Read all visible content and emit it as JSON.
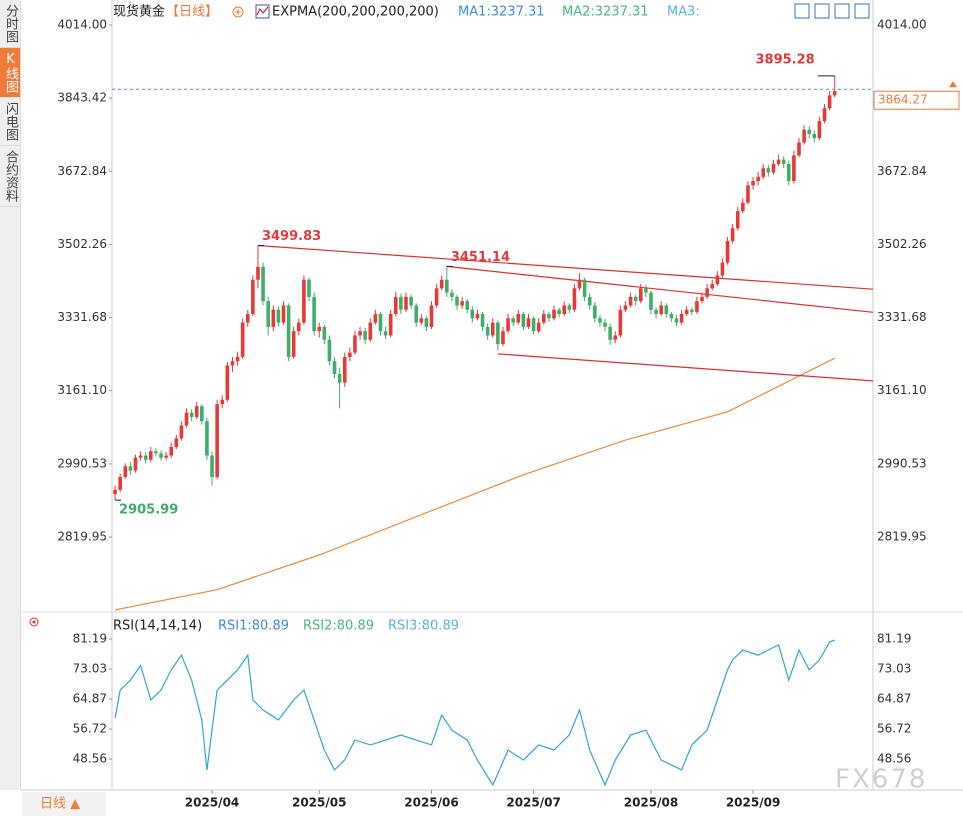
{
  "sidebar_tabs": [
    "分时图",
    "K线图",
    "闪电图",
    "合约资料"
  ],
  "chart_data": [
    {
      "type": "candlestick",
      "title": "现货黄金",
      "period": "【日线】",
      "indicator": "EXPMA(200,200,200,200)",
      "ma_labels": [
        "MA1:3237.31",
        "MA2:3237.31",
        "MA3:"
      ],
      "up_color": "#e8393a",
      "down_color": "#3fae6a",
      "xlim": [
        -0.6,
        148.5
      ],
      "ylim": [
        2645.1,
        4039.7
      ],
      "yticks": [
        {
          "value": 4014,
          "label": "4014.00"
        },
        3843.42,
        3672.84,
        3502.26,
        3331.68,
        {
          "value": 3161.1,
          "label": "3161.10"
        },
        2990.53,
        2819.95
      ],
      "xticks": [
        {
          "value": 19,
          "label": "2025/04"
        },
        {
          "value": 40,
          "label": "2025/05"
        },
        {
          "value": 62,
          "label": "2025/06"
        },
        {
          "value": 82,
          "label": "2025/07"
        },
        {
          "value": 105,
          "label": "2025/08"
        },
        {
          "value": 125,
          "label": "2025/09"
        }
      ],
      "ohlc": [
        [
          2920,
          2940,
          2905.99,
          2930
        ],
        [
          2930,
          2968,
          2925,
          2960
        ],
        [
          2960,
          2992,
          2955,
          2985
        ],
        [
          2985,
          2995,
          2965,
          2975
        ],
        [
          2975,
          3012,
          2970,
          3005
        ],
        [
          3005,
          3020,
          2998,
          3010
        ],
        [
          3010,
          3018,
          2992,
          3000
        ],
        [
          3000,
          3030,
          2995,
          3020
        ],
        [
          3020,
          3028,
          3008,
          3015
        ],
        [
          3015,
          3022,
          2998,
          3005
        ],
        [
          3005,
          3018,
          3000,
          3010
        ],
        [
          3010,
          3040,
          3005,
          3030
        ],
        [
          3030,
          3058,
          3025,
          3050
        ],
        [
          3050,
          3090,
          3045,
          3080
        ],
        [
          3080,
          3120,
          3075,
          3110
        ],
        [
          3110,
          3118,
          3090,
          3100
        ],
        [
          3100,
          3135,
          3095,
          3125
        ],
        [
          3125,
          3130,
          3082,
          3090
        ],
        [
          3090,
          3098,
          3000,
          3010
        ],
        [
          3010,
          3020,
          2940,
          2960
        ],
        [
          2960,
          3140,
          2955,
          3130
        ],
        [
          3130,
          3150,
          3120,
          3140
        ],
        [
          3140,
          3228,
          3135,
          3220
        ],
        [
          3220,
          3240,
          3205,
          3230
        ],
        [
          3230,
          3252,
          3220,
          3240
        ],
        [
          3240,
          3330,
          3235,
          3320
        ],
        [
          3320,
          3350,
          3310,
          3340
        ],
        [
          3340,
          3430,
          3335,
          3420
        ],
        [
          3420,
          3499.83,
          3400,
          3450
        ],
        [
          3450,
          3460,
          3360,
          3370
        ],
        [
          3370,
          3380,
          3290,
          3310
        ],
        [
          3310,
          3360,
          3300,
          3350
        ],
        [
          3350,
          3358,
          3310,
          3320
        ],
        [
          3320,
          3370,
          3315,
          3360
        ],
        [
          3360,
          3365,
          3230,
          3240
        ],
        [
          3240,
          3310,
          3235,
          3300
        ],
        [
          3300,
          3330,
          3290,
          3320
        ],
        [
          3320,
          3430,
          3315,
          3420
        ],
        [
          3420,
          3425,
          3370,
          3380
        ],
        [
          3380,
          3390,
          3290,
          3300
        ],
        [
          3300,
          3320,
          3285,
          3310
        ],
        [
          3310,
          3315,
          3270,
          3280
        ],
        [
          3280,
          3290,
          3220,
          3230
        ],
        [
          3230,
          3240,
          3190,
          3200
        ],
        [
          3200,
          3215,
          3120,
          3180
        ],
        [
          3180,
          3250,
          3170,
          3240
        ],
        [
          3240,
          3262,
          3230,
          3250
        ],
        [
          3250,
          3300,
          3245,
          3290
        ],
        [
          3290,
          3310,
          3280,
          3300
        ],
        [
          3300,
          3308,
          3270,
          3280
        ],
        [
          3280,
          3330,
          3275,
          3320
        ],
        [
          3320,
          3350,
          3315,
          3340
        ],
        [
          3340,
          3345,
          3290,
          3300
        ],
        [
          3300,
          3310,
          3282,
          3290
        ],
        [
          3290,
          3350,
          3285,
          3340
        ],
        [
          3340,
          3392,
          3335,
          3380
        ],
        [
          3380,
          3388,
          3340,
          3350
        ],
        [
          3350,
          3390,
          3345,
          3380
        ],
        [
          3380,
          3385,
          3352,
          3360
        ],
        [
          3360,
          3365,
          3310,
          3320
        ],
        [
          3320,
          3340,
          3315,
          3330
        ],
        [
          3330,
          3335,
          3300,
          3310
        ],
        [
          3310,
          3370,
          3305,
          3360
        ],
        [
          3360,
          3410,
          3355,
          3400
        ],
        [
          3400,
          3430,
          3395,
          3420
        ],
        [
          3420,
          3451.14,
          3380,
          3390
        ],
        [
          3390,
          3398,
          3370,
          3380
        ],
        [
          3380,
          3385,
          3350,
          3360
        ],
        [
          3360,
          3380,
          3352,
          3370
        ],
        [
          3370,
          3375,
          3342,
          3350
        ],
        [
          3350,
          3358,
          3320,
          3330
        ],
        [
          3330,
          3350,
          3325,
          3340
        ],
        [
          3340,
          3345,
          3300,
          3310
        ],
        [
          3310,
          3318,
          3280,
          3290
        ],
        [
          3290,
          3330,
          3285,
          3320
        ],
        [
          3320,
          3325,
          3255,
          3270
        ],
        [
          3270,
          3310,
          3265,
          3300
        ],
        [
          3300,
          3340,
          3295,
          3330
        ],
        [
          3330,
          3335,
          3312,
          3320
        ],
        [
          3320,
          3350,
          3315,
          3340
        ],
        [
          3340,
          3345,
          3302,
          3310
        ],
        [
          3310,
          3340,
          3305,
          3330
        ],
        [
          3330,
          3335,
          3292,
          3300
        ],
        [
          3300,
          3330,
          3295,
          3320
        ],
        [
          3320,
          3350,
          3315,
          3340
        ],
        [
          3340,
          3345,
          3322,
          3330
        ],
        [
          3330,
          3360,
          3325,
          3350
        ],
        [
          3350,
          3355,
          3332,
          3340
        ],
        [
          3340,
          3370,
          3335,
          3360
        ],
        [
          3360,
          3365,
          3342,
          3350
        ],
        [
          3350,
          3410,
          3345,
          3400
        ],
        [
          3400,
          3435,
          3395,
          3420
        ],
        [
          3420,
          3425,
          3370,
          3380
        ],
        [
          3380,
          3388,
          3350,
          3360
        ],
        [
          3360,
          3368,
          3320,
          3330
        ],
        [
          3330,
          3338,
          3310,
          3320
        ],
        [
          3320,
          3328,
          3300,
          3310
        ],
        [
          3310,
          3318,
          3268,
          3280
        ],
        [
          3280,
          3300,
          3272,
          3290
        ],
        [
          3290,
          3360,
          3285,
          3350
        ],
        [
          3350,
          3370,
          3345,
          3360
        ],
        [
          3360,
          3390,
          3355,
          3380
        ],
        [
          3380,
          3385,
          3360,
          3370
        ],
        [
          3370,
          3410,
          3365,
          3400
        ],
        [
          3400,
          3408,
          3380,
          3390
        ],
        [
          3390,
          3395,
          3340,
          3350
        ],
        [
          3350,
          3355,
          3330,
          3340
        ],
        [
          3340,
          3370,
          3335,
          3360
        ],
        [
          3360,
          3365,
          3332,
          3340
        ],
        [
          3340,
          3345,
          3322,
          3330
        ],
        [
          3330,
          3338,
          3312,
          3320
        ],
        [
          3320,
          3350,
          3315,
          3340
        ],
        [
          3340,
          3358,
          3335,
          3350
        ],
        [
          3350,
          3355,
          3338,
          3345
        ],
        [
          3345,
          3380,
          3340,
          3370
        ],
        [
          3370,
          3390,
          3365,
          3380
        ],
        [
          3380,
          3410,
          3375,
          3400
        ],
        [
          3400,
          3420,
          3395,
          3410
        ],
        [
          3410,
          3440,
          3405,
          3430
        ],
        [
          3430,
          3470,
          3425,
          3460
        ],
        [
          3460,
          3520,
          3455,
          3510
        ],
        [
          3510,
          3550,
          3505,
          3540
        ],
        [
          3540,
          3590,
          3535,
          3580
        ],
        [
          3580,
          3610,
          3575,
          3600
        ],
        [
          3600,
          3650,
          3595,
          3640
        ],
        [
          3640,
          3660,
          3630,
          3650
        ],
        [
          3650,
          3672,
          3640,
          3660
        ],
        [
          3660,
          3690,
          3655,
          3680
        ],
        [
          3680,
          3688,
          3660,
          3670
        ],
        [
          3670,
          3700,
          3665,
          3690
        ],
        [
          3690,
          3712,
          3685,
          3700
        ],
        [
          3700,
          3708,
          3680,
          3690
        ],
        [
          3690,
          3698,
          3640,
          3650
        ],
        [
          3650,
          3720,
          3645,
          3710
        ],
        [
          3710,
          3750,
          3705,
          3740
        ],
        [
          3740,
          3780,
          3735,
          3770
        ],
        [
          3770,
          3778,
          3750,
          3760
        ],
        [
          3760,
          3768,
          3740,
          3750
        ],
        [
          3750,
          3800,
          3745,
          3790
        ],
        [
          3790,
          3830,
          3785,
          3820
        ],
        [
          3820,
          3860,
          3815,
          3850
        ],
        [
          3850,
          3895.28,
          3845,
          3860
        ]
      ],
      "expma": {
        "color": "#f08a3c",
        "x": [
          0,
          20,
          40,
          60,
          80,
          100,
          120,
          141
        ],
        "values": [
          2650,
          2697,
          2778,
          2872,
          2965,
          3046,
          3112,
          3237
        ]
      },
      "trendlines": {
        "color": "#e03030",
        "lines": [
          {
            "x": [
              28,
              148.5
            ],
            "values": [
              3499.83,
              3398
            ]
          },
          {
            "x": [
              65,
              148.5
            ],
            "values": [
              3451.14,
              3344
            ]
          },
          {
            "x": [
              75,
              148.5
            ],
            "values": [
              3247,
              3184
            ]
          }
        ]
      },
      "last_price": {
        "value": 3864.27,
        "color": "#3a8ee6"
      }
    },
    {
      "type": "line",
      "title": "RSI(14,14,14)",
      "labels": [
        "RSI1:80.89",
        "RSI2:80.89",
        "RSI3:80.89"
      ],
      "xlim": [
        -0.6,
        148.5
      ],
      "ylim": [
        40.14,
        83.64
      ],
      "yticks": [
        81.19,
        73.03,
        64.87,
        56.72,
        48.56
      ],
      "series": [
        {
          "color": "#2fa6d8",
          "x": [
            0,
            1,
            3,
            5,
            7,
            9,
            11,
            13,
            15,
            17,
            18,
            20,
            22,
            24,
            26,
            27,
            29,
            32,
            35,
            37,
            39,
            41,
            43,
            45,
            47,
            50,
            53,
            56,
            59,
            62,
            64,
            66,
            69,
            71,
            74,
            77,
            80,
            83,
            86,
            89,
            91,
            93,
            96,
            98,
            101,
            104,
            107,
            111,
            113,
            116,
            118,
            120,
            121,
            123,
            126,
            128,
            130,
            132,
            134,
            136,
            138,
            140,
            141
          ],
          "values": [
            59.7,
            67.3,
            70.0,
            74.0,
            64.6,
            67.3,
            72.8,
            76.8,
            70.0,
            59.2,
            45.6,
            67.3,
            70.0,
            72.8,
            76.8,
            64.6,
            61.9,
            59.2,
            64.6,
            67.3,
            59.2,
            51.0,
            45.6,
            48.3,
            53.7,
            52.4,
            53.7,
            55.1,
            53.7,
            52.4,
            60.5,
            56.4,
            53.7,
            48.3,
            41.5,
            51.0,
            48.3,
            52.4,
            51.0,
            55.1,
            61.9,
            51.0,
            41.5,
            48.3,
            55.1,
            56.4,
            48.3,
            45.6,
            52.4,
            56.4,
            64.6,
            72.8,
            75.5,
            78.2,
            76.8,
            78.2,
            79.6,
            70.0,
            78.2,
            72.8,
            75.5,
            80.4,
            80.89
          ]
        }
      ]
    }
  ],
  "footer": {
    "period": "日线 ▲"
  },
  "watermark": "FX678"
}
